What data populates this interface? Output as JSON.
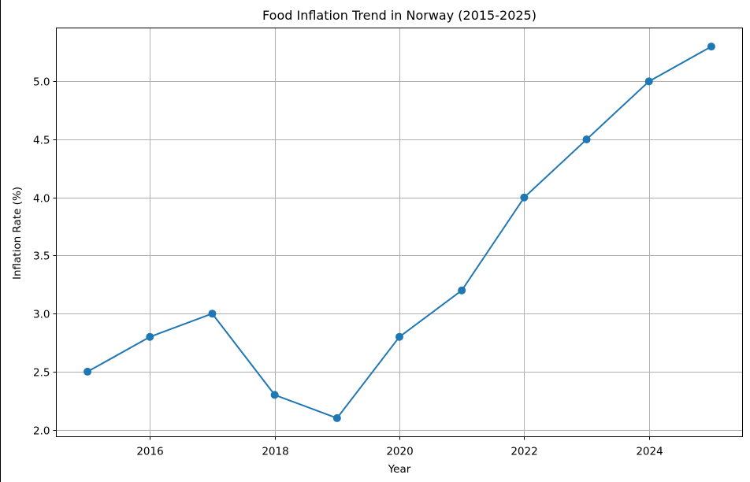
{
  "chart_data": {
    "type": "line",
    "title": "Food Inflation Trend in Norway (2015-2025)",
    "xlabel": "Year",
    "ylabel": "Inflation Rate (%)",
    "x": [
      2015,
      2016,
      2017,
      2018,
      2019,
      2020,
      2021,
      2022,
      2023,
      2024,
      2025
    ],
    "series": [
      {
        "values": [
          2.5,
          2.8,
          3.0,
          2.3,
          2.1,
          2.8,
          3.2,
          4.0,
          4.5,
          5.0,
          5.3
        ],
        "color": "#1f77b4",
        "marker": "circle"
      }
    ],
    "xlim": [
      2014.5,
      2025.5
    ],
    "ylim": [
      1.94,
      5.46
    ],
    "xticks": [
      2016,
      2018,
      2020,
      2022,
      2024
    ],
    "xtick_labels": [
      "2016",
      "2018",
      "2020",
      "2022",
      "2024"
    ],
    "yticks": [
      2.0,
      2.5,
      3.0,
      3.5,
      4.0,
      4.5,
      5.0
    ],
    "ytick_labels": [
      "2.0",
      "2.5",
      "3.0",
      "3.5",
      "4.0",
      "4.5",
      "5.0"
    ],
    "grid": true,
    "legend": "none"
  }
}
